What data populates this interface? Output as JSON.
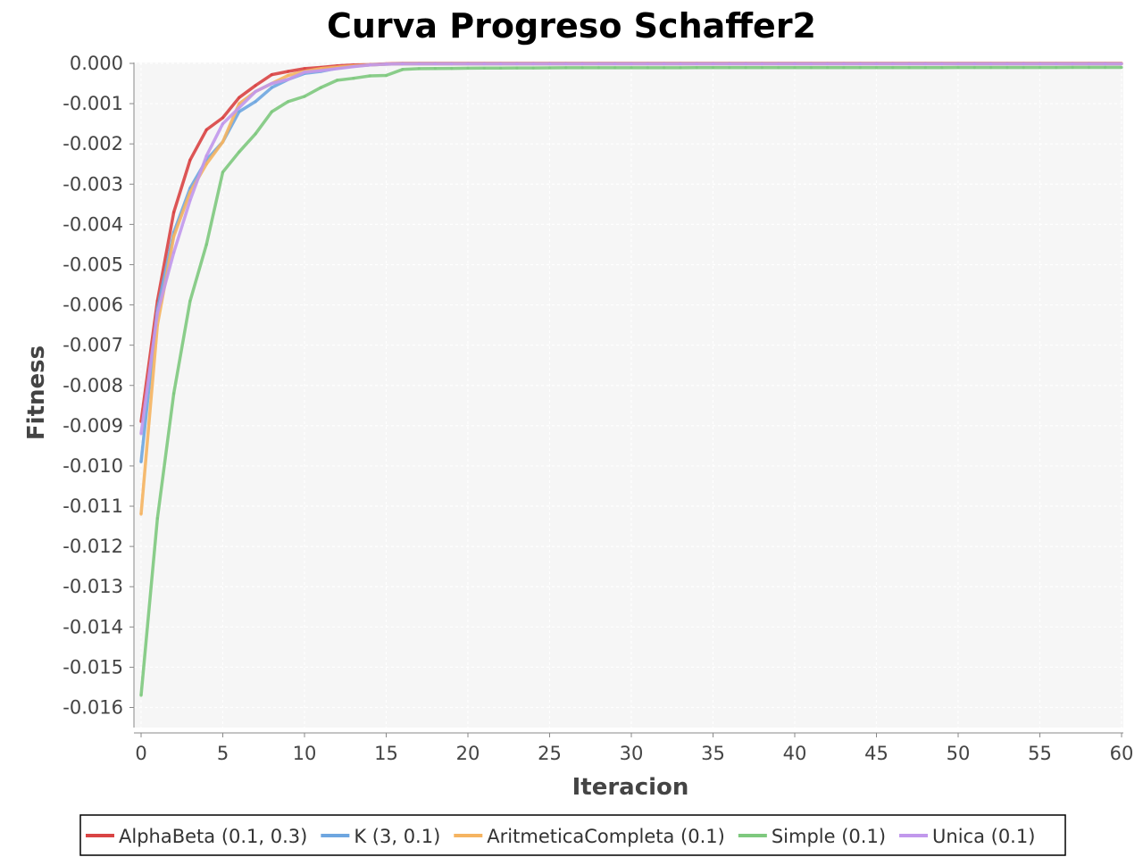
{
  "chart_data": {
    "type": "line",
    "title": "Curva Progreso Schaffer2",
    "xlabel": "Iteracion",
    "ylabel": "Fitness",
    "xlim": [
      0,
      60
    ],
    "ylim": [
      -0.0165,
      0.0
    ],
    "x_ticks": [
      0,
      5,
      10,
      15,
      20,
      25,
      30,
      35,
      40,
      45,
      50,
      55,
      60
    ],
    "x_tick_labels": [
      "0",
      "5",
      "10",
      "15",
      "20",
      "25",
      "30",
      "35",
      "40",
      "45",
      "50",
      "55",
      "60"
    ],
    "y_ticks": [
      0.0,
      -0.001,
      -0.002,
      -0.003,
      -0.004,
      -0.005,
      -0.006,
      -0.007,
      -0.008,
      -0.009,
      -0.01,
      -0.011,
      -0.012,
      -0.013,
      -0.014,
      -0.015,
      -0.016
    ],
    "y_tick_labels": [
      "0.000",
      "-0.001",
      "-0.002",
      "-0.003",
      "-0.004",
      "-0.005",
      "-0.006",
      "-0.007",
      "-0.008",
      "-0.009",
      "-0.010",
      "-0.011",
      "-0.012",
      "-0.013",
      "-0.014",
      "-0.015",
      "-0.016"
    ],
    "grid": true,
    "legend_position": "bottom",
    "background_color": "#f6f6f6",
    "series": [
      {
        "name": "AlphaBeta (0.1, 0.3)",
        "color": "#d94444",
        "x": [
          0,
          1,
          2,
          3,
          4,
          5,
          6,
          7,
          8,
          9,
          10,
          11,
          12,
          13,
          14,
          15,
          16,
          60
        ],
        "y": [
          -0.0089,
          -0.0059,
          -0.0037,
          -0.0024,
          -0.00165,
          -0.00135,
          -0.00085,
          -0.00055,
          -0.00028,
          -0.0002,
          -0.00013,
          -0.0001,
          -6e-05,
          -4e-05,
          -3e-05,
          -1e-05,
          0.0,
          0.0
        ]
      },
      {
        "name": "K (3, 0.1)",
        "color": "#6ea6e0",
        "x": [
          0,
          1,
          2,
          3,
          4,
          5,
          6,
          7,
          8,
          9,
          10,
          11,
          12,
          13,
          14,
          15,
          16,
          60
        ],
        "y": [
          -0.0099,
          -0.0061,
          -0.0042,
          -0.0031,
          -0.0024,
          -0.00195,
          -0.0012,
          -0.00095,
          -0.0006,
          -0.0004,
          -0.00025,
          -0.0002,
          -0.00012,
          -7e-05,
          -4e-05,
          -2e-05,
          -1e-05,
          -1e-05
        ]
      },
      {
        "name": "AritmeticaCompleta (0.1)",
        "color": "#f5b461",
        "x": [
          0,
          1,
          2,
          3,
          4,
          5,
          6,
          7,
          8,
          9,
          10,
          11,
          12,
          13,
          14,
          15,
          16,
          60
        ],
        "y": [
          -0.0112,
          -0.0065,
          -0.0043,
          -0.0032,
          -0.0025,
          -0.00195,
          -0.001,
          -0.0007,
          -0.0005,
          -0.0003,
          -0.0002,
          -0.00013,
          -9e-05,
          -6e-05,
          -4e-05,
          -2e-05,
          -1e-05,
          -1e-05
        ]
      },
      {
        "name": "Simple (0.1)",
        "color": "#7ec97e",
        "x": [
          0,
          1,
          2,
          3,
          4,
          5,
          6,
          7,
          8,
          9,
          10,
          11,
          12,
          13,
          14,
          15,
          16,
          17,
          20,
          25,
          60
        ],
        "y": [
          -0.0157,
          -0.0113,
          -0.0082,
          -0.0059,
          -0.0045,
          -0.0027,
          -0.0022,
          -0.00175,
          -0.0012,
          -0.00095,
          -0.00082,
          -0.0006,
          -0.00042,
          -0.00037,
          -0.00031,
          -0.0003,
          -0.00015,
          -0.00013,
          -0.00012,
          -0.00011,
          -0.0001
        ]
      },
      {
        "name": "Unica (0.1)",
        "color": "#c198ec",
        "x": [
          0,
          1,
          2,
          3,
          4,
          5,
          6,
          7,
          8,
          9,
          10,
          11,
          12,
          13,
          14,
          15,
          16,
          60
        ],
        "y": [
          -0.0092,
          -0.0062,
          -0.0047,
          -0.0034,
          -0.0023,
          -0.0015,
          -0.0011,
          -0.0007,
          -0.0005,
          -0.0004,
          -0.00022,
          -0.00018,
          -0.00013,
          -8e-05,
          -4e-05,
          -2e-05,
          -1e-05,
          -1e-05
        ]
      }
    ]
  }
}
